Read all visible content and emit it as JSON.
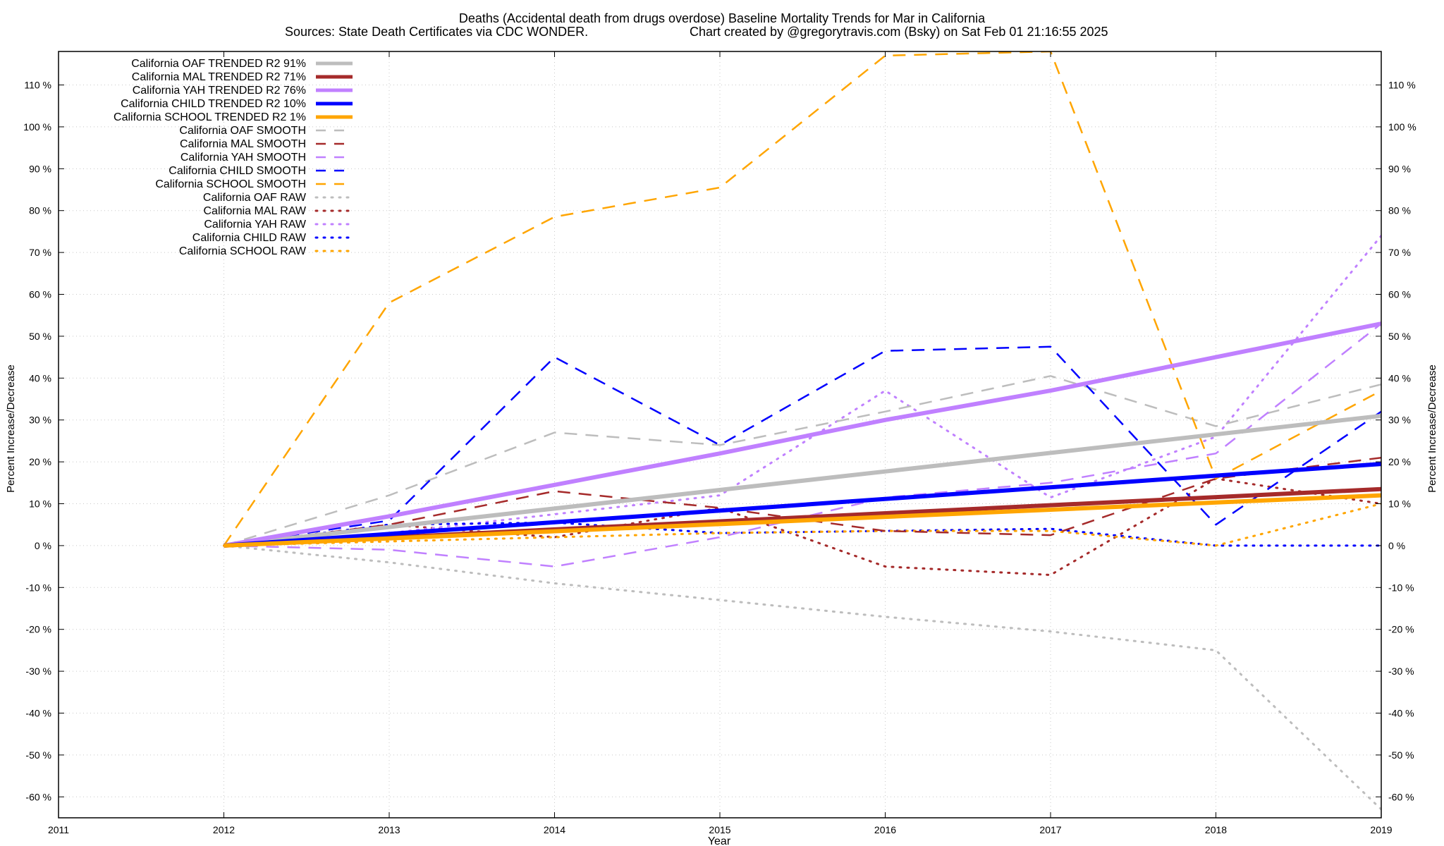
{
  "chart_data": {
    "type": "line",
    "title": "Deaths (Accidental death from drugs overdose)  Baseline Mortality Trends for Mar in California",
    "subtitle_left": "Sources: State Death Certificates via CDC WONDER.",
    "subtitle_right": "Chart created by @gregorytravis.com (Bsky) on Sat Feb 01 21:16:55 2025",
    "xlabel": "Year",
    "ylabel_left": "Percent Increase/Decrease",
    "ylabel_right": "Percent Increase/Decrease",
    "xlim": [
      2011,
      2019
    ],
    "ylim": [
      -65,
      118
    ],
    "x_ticks": [
      2011,
      2012,
      2013,
      2014,
      2015,
      2016,
      2017,
      2018,
      2019
    ],
    "x_tick_labels": [
      "2011",
      "2012",
      "2013",
      "2014",
      "2015",
      "2016",
      "2017",
      "2018",
      "2019"
    ],
    "y_ticks": [
      -60,
      -50,
      -40,
      -30,
      -20,
      -10,
      0,
      10,
      20,
      30,
      40,
      50,
      60,
      70,
      80,
      90,
      100,
      110
    ],
    "y_tick_labels": [
      "-60 %",
      "-50 %",
      "-40 %",
      "-30 %",
      "-20 %",
      "-10 %",
      "0 %",
      "10 %",
      "20 %",
      "30 %",
      "40 %",
      "50 %",
      "60 %",
      "70 %",
      "80 %",
      "90 %",
      "100 %",
      "110 %"
    ],
    "grid": true,
    "legend_position": "top-left",
    "series": [
      {
        "name": "California OAF TRENDED R2  91%",
        "style": "solid",
        "color": "#bdbdbd",
        "x": [
          2012,
          2019
        ],
        "y": [
          0,
          31
        ]
      },
      {
        "name": "California MAL TRENDED R2  71%",
        "style": "solid",
        "color": "#a52a2a",
        "x": [
          2012,
          2019
        ],
        "y": [
          0,
          13.5
        ]
      },
      {
        "name": "California YAH TRENDED R2  76%",
        "style": "solid",
        "color": "#c080ff",
        "x": [
          2012,
          2013,
          2014,
          2015,
          2016,
          2017,
          2018,
          2019
        ],
        "y": [
          0,
          7,
          14.5,
          22,
          30,
          37,
          45,
          53
        ]
      },
      {
        "name": "California CHILD TRENDED R2  10%",
        "style": "solid",
        "color": "#0000ff",
        "x": [
          2012,
          2019
        ],
        "y": [
          0,
          19.5
        ]
      },
      {
        "name": "California SCHOOL TRENDED R2   1%",
        "style": "solid",
        "color": "#ffa500",
        "x": [
          2012,
          2019
        ],
        "y": [
          0,
          12
        ]
      },
      {
        "name": "California OAF SMOOTH",
        "style": "dashed",
        "color": "#bdbdbd",
        "x": [
          2012,
          2013,
          2014,
          2015,
          2016,
          2017,
          2018,
          2019
        ],
        "y": [
          0,
          12,
          27,
          24,
          32,
          40.5,
          28.5,
          38.5
        ]
      },
      {
        "name": "California MAL SMOOTH",
        "style": "dashed",
        "color": "#a52a2a",
        "x": [
          2012,
          2013,
          2014,
          2015,
          2016,
          2017,
          2018,
          2019
        ],
        "y": [
          0,
          5,
          13,
          9,
          3.5,
          2.5,
          16,
          21
        ]
      },
      {
        "name": "California YAH SMOOTH",
        "style": "dashed",
        "color": "#c080ff",
        "x": [
          2012,
          2013,
          2014,
          2015,
          2016,
          2017,
          2018,
          2019
        ],
        "y": [
          0,
          -1,
          -5,
          2,
          11.5,
          15,
          22,
          53
        ]
      },
      {
        "name": "California CHILD SMOOTH",
        "style": "dashed",
        "color": "#0000ff",
        "x": [
          2012,
          2013,
          2014,
          2015,
          2016,
          2017,
          2018,
          2019
        ],
        "y": [
          0,
          6,
          45,
          24,
          46.5,
          47.5,
          5,
          32
        ]
      },
      {
        "name": "California SCHOOL SMOOTH",
        "style": "dashed",
        "color": "#ffa500",
        "x": [
          2012,
          2013,
          2014,
          2015,
          2016,
          2017,
          2018,
          2019
        ],
        "y": [
          0,
          58,
          78.5,
          85.5,
          117,
          118,
          16,
          37
        ]
      },
      {
        "name": "California OAF RAW",
        "style": "dotted",
        "color": "#bdbdbd",
        "x": [
          2012,
          2013,
          2014,
          2015,
          2016,
          2017,
          2018,
          2019
        ],
        "y": [
          0,
          -4,
          -9,
          -13,
          -17,
          -20.5,
          -25,
          -63
        ]
      },
      {
        "name": "California MAL RAW",
        "style": "dotted",
        "color": "#a52a2a",
        "x": [
          2012,
          2013,
          2014,
          2015,
          2016,
          2017,
          2018,
          2019
        ],
        "y": [
          0,
          5,
          2,
          9,
          -5,
          -7,
          16,
          10
        ]
      },
      {
        "name": "California YAH RAW",
        "style": "dotted",
        "color": "#c080ff",
        "x": [
          2012,
          2013,
          2014,
          2015,
          2016,
          2017,
          2018,
          2019
        ],
        "y": [
          0,
          3,
          7.5,
          12,
          37,
          11.5,
          26,
          74
        ]
      },
      {
        "name": "California CHILD RAW",
        "style": "dotted",
        "color": "#0000ff",
        "x": [
          2012,
          2013,
          2014,
          2015,
          2016,
          2017,
          2018,
          2019
        ],
        "y": [
          0,
          5,
          5.5,
          3,
          3.5,
          4,
          0,
          0
        ]
      },
      {
        "name": "California SCHOOL RAW",
        "style": "dotted",
        "color": "#ffa500",
        "x": [
          2012,
          2013,
          2014,
          2015,
          2016,
          2017,
          2018,
          2019
        ],
        "y": [
          0,
          1,
          2,
          3,
          3.5,
          3.5,
          0,
          10
        ]
      }
    ]
  }
}
